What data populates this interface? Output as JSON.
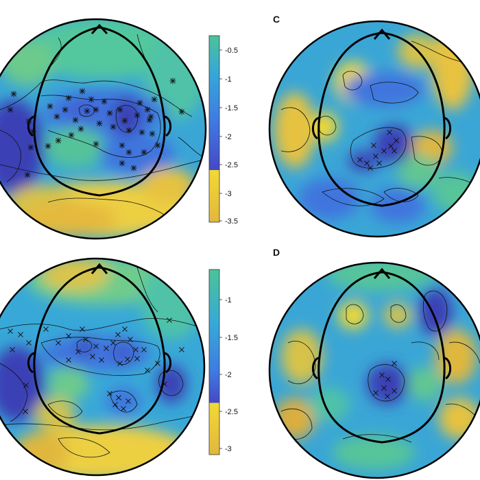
{
  "panels": {
    "a": {
      "label": "",
      "marker": "asterisk"
    },
    "b": {
      "label": "",
      "marker": "cross"
    },
    "c": {
      "label": "C",
      "marker": "cross"
    },
    "d": {
      "label": "D",
      "marker": "cross"
    }
  },
  "colorbar_top": {
    "ticks": [
      "-0.5",
      "-1",
      "-1.5",
      "-2",
      "-2.5",
      "-3",
      "-3.5"
    ],
    "colors": [
      "#4cc39a",
      "#36a8d8",
      "#3f7be2",
      "#4548c8",
      "#f1d935",
      "#e2b73d"
    ]
  },
  "colorbar_bottom": {
    "ticks": [
      "-1",
      "-1.5",
      "-2",
      "-2.5",
      "-3"
    ],
    "colors": [
      "#4cc39a",
      "#36a8d8",
      "#3f7be2",
      "#4548c8",
      "#f1d935",
      "#e2b73d"
    ]
  },
  "colors": {
    "teal": "#48c2a6",
    "cyan": "#34aed8",
    "blue": "#3f72e0",
    "indigo": "#3a3cb8",
    "yellow": "#f1d935",
    "ochre": "#dcae3c"
  }
}
